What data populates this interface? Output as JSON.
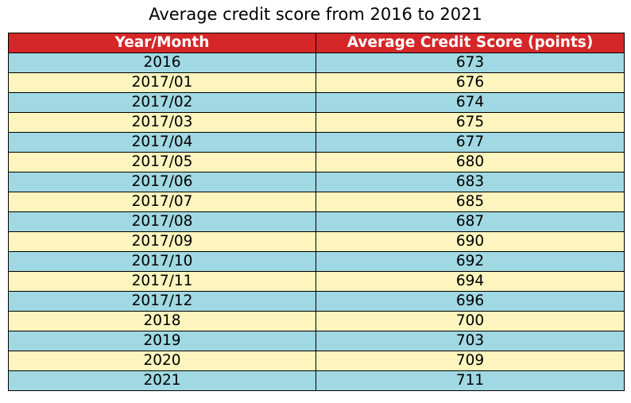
{
  "chart_data": {
    "type": "table",
    "title": "Average credit score from 2016 to 2021",
    "columns": [
      "Year/Month",
      "Average Credit Score (points)"
    ],
    "rows": [
      [
        "2016",
        "673"
      ],
      [
        "2017/01",
        "676"
      ],
      [
        "2017/02",
        "674"
      ],
      [
        "2017/03",
        "675"
      ],
      [
        "2017/04",
        "677"
      ],
      [
        "2017/05",
        "680"
      ],
      [
        "2017/06",
        "683"
      ],
      [
        "2017/07",
        "685"
      ],
      [
        "2017/08",
        "687"
      ],
      [
        "2017/09",
        "690"
      ],
      [
        "2017/10",
        "692"
      ],
      [
        "2017/11",
        "694"
      ],
      [
        "2017/12",
        "696"
      ],
      [
        "2018",
        "700"
      ],
      [
        "2019",
        "703"
      ],
      [
        "2020",
        "709"
      ],
      [
        "2021",
        "711"
      ]
    ]
  },
  "colors": {
    "header_bg": "#d62728",
    "header_text": "#ffffff",
    "row_odd_bg": "#a0d8e3",
    "row_even_bg": "#fdf5bd",
    "border": "#000000"
  }
}
